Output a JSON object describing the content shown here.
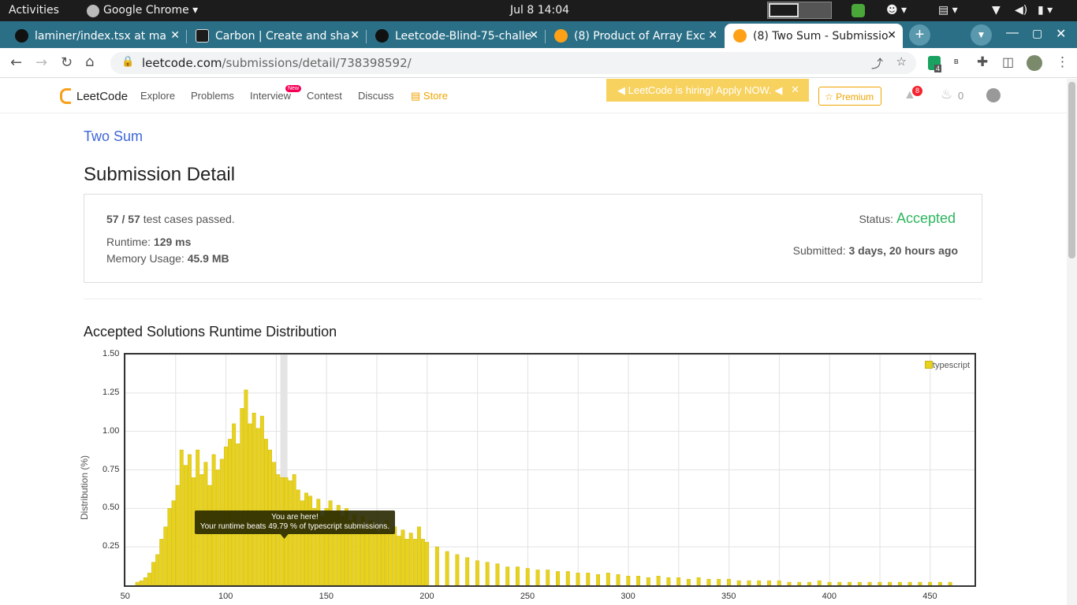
{
  "os_bar": {
    "activities": "Activities",
    "app_name": "Google Chrome",
    "clock": "Jul 8  14:04"
  },
  "browser": {
    "tabs": [
      {
        "title": "laminer/index.tsx at ma",
        "color": "#24292f"
      },
      {
        "title": "Carbon | Create and sha",
        "color": "#1c1c1c"
      },
      {
        "title": "Leetcode-Blind-75-challe",
        "color": "#24292f"
      },
      {
        "title": "(8) Product of Array Exc",
        "color": "#ffa116"
      },
      {
        "title": "(8) Two Sum - Submissio",
        "color": "#ffa116"
      }
    ],
    "url_host": "leetcode.com",
    "url_path": "/submissions/detail/738398592/",
    "ext_badge": "4",
    "ext_b": "B"
  },
  "leetcode_nav": {
    "logo": "LeetCode",
    "items": [
      "Explore",
      "Problems",
      "Interview",
      "Contest",
      "Discuss"
    ],
    "new_badge": "New",
    "store": "Store",
    "hiring": "LeetCode is hiring! Apply NOW.",
    "premium": "Premium",
    "notifications": "8",
    "streak": "0"
  },
  "problem_link": "Two Sum",
  "page_title": "Submission Detail",
  "summary": {
    "passed": "57 / 57",
    "passed_suffix": "test cases passed.",
    "runtime_label": "Runtime:",
    "runtime": "129 ms",
    "memory_label": "Memory Usage:",
    "memory": "45.9 MB",
    "status_label": "Status:",
    "status": "Accepted",
    "submitted_label": "Submitted:",
    "submitted": "3 days, 20 hours ago"
  },
  "section_title": "Accepted Solutions Runtime Distribution",
  "chart_data": {
    "type": "bar",
    "ylabel": "Distribution (%)",
    "xlim": [
      50,
      472
    ],
    "ylim": [
      0,
      1.5
    ],
    "yticks": [
      "1.50",
      "1.25",
      "1.00",
      "0.75",
      "0.50",
      "0.25"
    ],
    "xticks": [
      "50",
      "100",
      "150",
      "200",
      "250",
      "300",
      "350",
      "400",
      "450"
    ],
    "legend": "typescript",
    "legend_position": "top-right",
    "bar_color": "#e8d21d",
    "highlight_x": 129,
    "tooltip_title": "You are here!",
    "tooltip_text": "Your runtime beats 49.79 % of typescript submissions.",
    "x": [
      56,
      58,
      60,
      62,
      64,
      66,
      68,
      70,
      72,
      74,
      76,
      78,
      80,
      82,
      84,
      86,
      88,
      90,
      92,
      94,
      96,
      98,
      100,
      102,
      104,
      106,
      108,
      110,
      112,
      114,
      116,
      118,
      120,
      122,
      124,
      126,
      128,
      130,
      132,
      134,
      136,
      138,
      140,
      142,
      144,
      146,
      148,
      150,
      152,
      154,
      156,
      158,
      160,
      162,
      164,
      166,
      168,
      170,
      172,
      174,
      176,
      178,
      180,
      182,
      184,
      186,
      188,
      190,
      192,
      194,
      196,
      198,
      200,
      205,
      210,
      215,
      220,
      225,
      230,
      235,
      240,
      245,
      250,
      255,
      260,
      265,
      270,
      275,
      280,
      285,
      290,
      295,
      300,
      305,
      310,
      315,
      320,
      325,
      330,
      335,
      340,
      345,
      350,
      355,
      360,
      365,
      370,
      375,
      380,
      385,
      390,
      395,
      400,
      405,
      410,
      415,
      420,
      425,
      430,
      435,
      440,
      445,
      450,
      455,
      460
    ],
    "values": [
      0.02,
      0.03,
      0.05,
      0.08,
      0.15,
      0.2,
      0.3,
      0.38,
      0.5,
      0.55,
      0.65,
      0.88,
      0.78,
      0.85,
      0.7,
      0.88,
      0.72,
      0.8,
      0.65,
      0.85,
      0.75,
      0.82,
      0.9,
      0.95,
      1.05,
      0.92,
      1.15,
      1.27,
      1.05,
      1.12,
      1.02,
      1.1,
      0.95,
      0.88,
      0.8,
      0.72,
      0.7,
      0.7,
      0.68,
      0.72,
      0.62,
      0.55,
      0.6,
      0.58,
      0.5,
      0.56,
      0.45,
      0.5,
      0.55,
      0.48,
      0.52,
      0.45,
      0.5,
      0.42,
      0.46,
      0.4,
      0.45,
      0.38,
      0.42,
      0.4,
      0.35,
      0.38,
      0.42,
      0.35,
      0.38,
      0.32,
      0.36,
      0.3,
      0.34,
      0.3,
      0.38,
      0.3,
      0.28,
      0.25,
      0.22,
      0.2,
      0.18,
      0.16,
      0.15,
      0.14,
      0.12,
      0.12,
      0.11,
      0.1,
      0.1,
      0.09,
      0.09,
      0.08,
      0.08,
      0.07,
      0.08,
      0.07,
      0.06,
      0.06,
      0.05,
      0.06,
      0.05,
      0.05,
      0.04,
      0.05,
      0.04,
      0.04,
      0.04,
      0.03,
      0.03,
      0.03,
      0.03,
      0.03,
      0.02,
      0.02,
      0.02,
      0.03,
      0.02,
      0.02,
      0.02,
      0.02,
      0.02,
      0.02,
      0.02,
      0.02,
      0.02,
      0.02,
      0.02,
      0.02,
      0.02
    ]
  }
}
